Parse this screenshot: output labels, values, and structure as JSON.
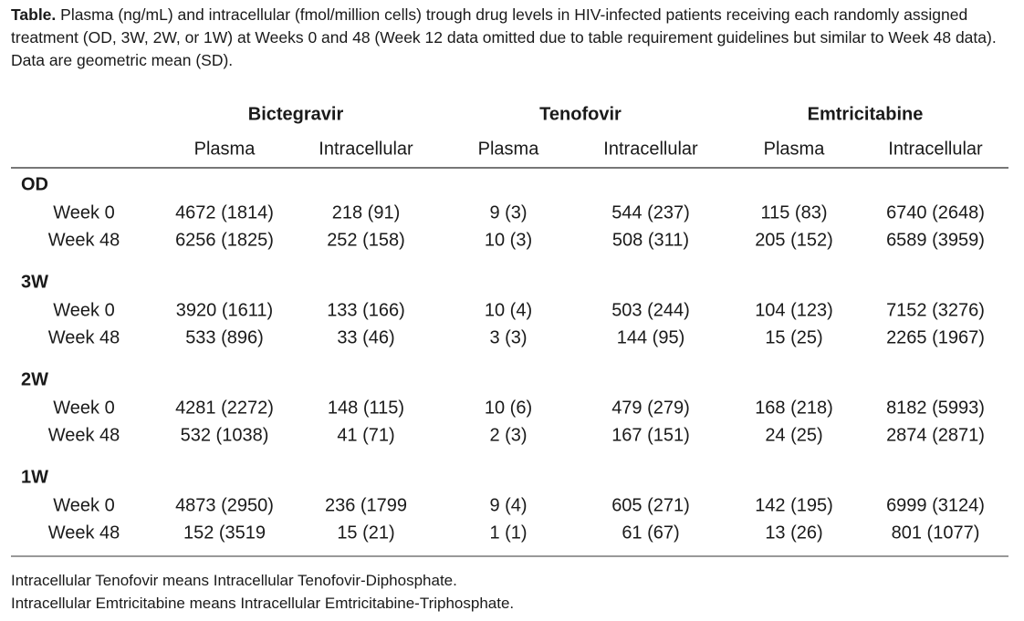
{
  "caption": {
    "label": "Table.",
    "text": " Plasma (ng/mL) and intracellular (fmol/million cells) trough drug levels in HIV-infected patients receiving each randomly assigned treatment (OD, 3W, 2W, or 1W) at Weeks 0 and 48 (Week 12 data omitted due to table requirement guidelines but similar to Week 48 data). Data are geometric mean (SD)."
  },
  "table": {
    "drugs": [
      "Bictegravir",
      "Tenofovir",
      "Emtricitabine"
    ],
    "subheaders": [
      "Plasma",
      "Intracellular",
      "Plasma",
      "Intracellular",
      "Plasma",
      "Intracellular"
    ],
    "groups": [
      {
        "label": "OD",
        "rows": [
          {
            "label": "Week 0",
            "values": [
              "4672 (1814)",
              "218 (91)",
              "9 (3)",
              "544 (237)",
              "115 (83)",
              "6740 (2648)"
            ]
          },
          {
            "label": "Week 48",
            "values": [
              "6256 (1825)",
              "252 (158)",
              "10 (3)",
              "508 (311)",
              "205 (152)",
              "6589 (3959)"
            ]
          }
        ]
      },
      {
        "label": "3W",
        "rows": [
          {
            "label": "Week 0",
            "values": [
              "3920 (1611)",
              "133 (166)",
              "10 (4)",
              "503 (244)",
              "104 (123)",
              "7152 (3276)"
            ]
          },
          {
            "label": "Week 48",
            "values": [
              "533 (896)",
              "33 (46)",
              "3 (3)",
              "144 (95)",
              "15 (25)",
              "2265 (1967)"
            ]
          }
        ]
      },
      {
        "label": "2W",
        "rows": [
          {
            "label": "Week 0",
            "values": [
              "4281 (2272)",
              "148 (115)",
              "10 (6)",
              "479 (279)",
              "168 (218)",
              "8182 (5993)"
            ]
          },
          {
            "label": "Week 48",
            "values": [
              "532 (1038)",
              "41 (71)",
              "2 (3)",
              "167 (151)",
              "24 (25)",
              "2874 (2871)"
            ]
          }
        ]
      },
      {
        "label": "1W",
        "rows": [
          {
            "label": "Week 0",
            "values": [
              "4873 (2950)",
              "236 (1799",
              "9 (4)",
              "605 (271)",
              "142 (195)",
              "6999 (3124)"
            ]
          },
          {
            "label": "Week 48",
            "values": [
              "152 (3519",
              "15 (21)",
              "1 (1)",
              "61 (67)",
              "13 (26)",
              "801 (1077)"
            ]
          }
        ]
      }
    ]
  },
  "footnotes": [
    "Intracellular Tenofovir means Intracellular Tenofovir-Diphosphate.",
    "Intracellular Emtricitabine means Intracellular Emtricitabine-Triphosphate."
  ]
}
